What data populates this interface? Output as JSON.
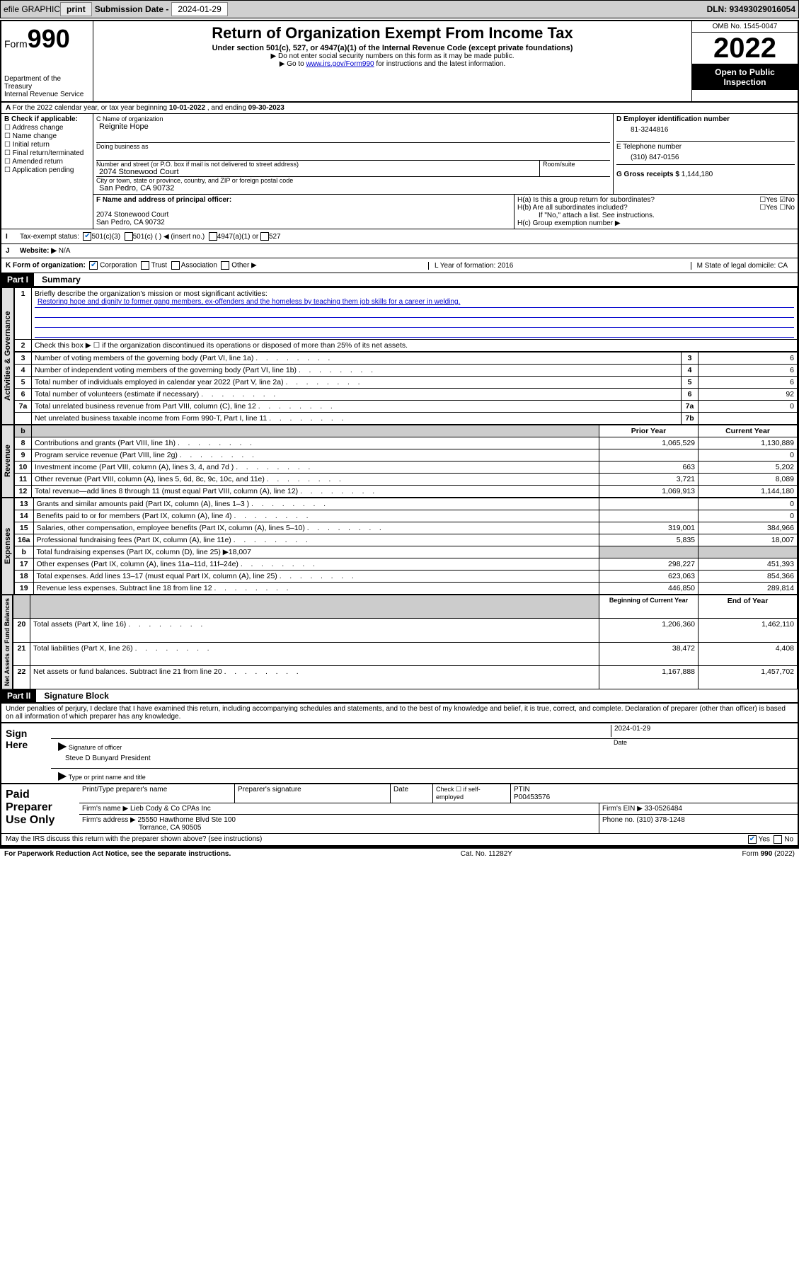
{
  "topbar": {
    "efile": "efile GRAPHIC",
    "print": "print",
    "sub_label": "Submission Date - ",
    "sub_date": "2024-01-29",
    "dln": "DLN: 93493029016054"
  },
  "header": {
    "form_small": "Form",
    "form_num": "990",
    "dept": "Department of the Treasury",
    "irs": "Internal Revenue Service",
    "title": "Return of Organization Exempt From Income Tax",
    "sub1": "Under section 501(c), 527, or 4947(a)(1) of the Internal Revenue Code (except private foundations)",
    "sub2": "▶ Do not enter social security numbers on this form as it may be made public.",
    "sub3_pre": "▶ Go to ",
    "sub3_link": "www.irs.gov/Form990",
    "sub3_post": " for instructions and the latest information.",
    "omb": "OMB No. 1545-0047",
    "year": "2022",
    "open": "Open to Public Inspection"
  },
  "rowA": {
    "text_pre": "For the 2022 calendar year, or tax year beginning ",
    "begin": "10-01-2022",
    "mid": " , and ending ",
    "end": "09-30-2023"
  },
  "B": {
    "lbl": "B Check if applicable:",
    "opts": [
      "Address change",
      "Name change",
      "Initial return",
      "Final return/terminated",
      "Amended return",
      "Application pending"
    ]
  },
  "C": {
    "name_lbl": "C Name of organization",
    "name": "Reignite Hope",
    "dba_lbl": "Doing business as",
    "addr_lbl": "Number and street (or P.O. box if mail is not delivered to street address)",
    "room_lbl": "Room/suite",
    "addr": "2074 Stonewood Court",
    "city_lbl": "City or town, state or province, country, and ZIP or foreign postal code",
    "city": "San Pedro, CA  90732"
  },
  "D": {
    "lbl": "D Employer identification number",
    "val": "81-3244816"
  },
  "E": {
    "lbl": "E Telephone number",
    "val": "(310) 847-0156"
  },
  "G": {
    "lbl": "G Gross receipts $",
    "val": "1,144,180"
  },
  "F": {
    "lbl": "F  Name and address of principal officer:",
    "addr1": "2074 Stonewood Court",
    "addr2": "San Pedro, CA  90732"
  },
  "H": {
    "a": "H(a)  Is this a group return for subordinates?",
    "b": "H(b)  Are all subordinates included?",
    "note": "If \"No,\" attach a list. See instructions.",
    "c": "H(c)  Group exemption number ▶"
  },
  "I": {
    "lbl": "Tax-exempt status:",
    "o1": "501(c)(3)",
    "o2": "501(c) (  ) ◀ (insert no.)",
    "o3": "4947(a)(1) or",
    "o4": "527"
  },
  "J": {
    "lbl": "Website: ▶",
    "val": "N/A"
  },
  "K": {
    "lbl": "K Form of organization:",
    "opts": [
      "Corporation",
      "Trust",
      "Association",
      "Other ▶"
    ],
    "L": "L Year of formation: 2016",
    "M": "M State of legal domicile: CA"
  },
  "part1": {
    "hdr": "Part I",
    "title": "Summary",
    "q1_lbl": "Briefly describe the organization's mission or most significant activities:",
    "q1_val": "Restoring hope and dignity to former gang members, ex-offenders and the homeless by teaching them job skills for a career in welding.",
    "q2": "Check this box ▶ ☐ if the organization discontinued its operations or disposed of more than 25% of its net assets.",
    "sideA": "Activities & Governance",
    "sideR": "Revenue",
    "sideE": "Expenses",
    "sideN": "Net Assets or Fund Balances",
    "rows_gov": [
      {
        "n": "3",
        "t": "Number of voting members of the governing body (Part VI, line 1a)",
        "b": "3",
        "v": "6"
      },
      {
        "n": "4",
        "t": "Number of independent voting members of the governing body (Part VI, line 1b)",
        "b": "4",
        "v": "6"
      },
      {
        "n": "5",
        "t": "Total number of individuals employed in calendar year 2022 (Part V, line 2a)",
        "b": "5",
        "v": "6"
      },
      {
        "n": "6",
        "t": "Total number of volunteers (estimate if necessary)",
        "b": "6",
        "v": "92"
      },
      {
        "n": "7a",
        "t": "Total unrelated business revenue from Part VIII, column (C), line 12",
        "b": "7a",
        "v": "0"
      },
      {
        "n": "",
        "t": "Net unrelated business taxable income from Form 990-T, Part I, line 11",
        "b": "7b",
        "v": ""
      }
    ],
    "py_hdr": "Prior Year",
    "cy_hdr": "Current Year",
    "rows_rev": [
      {
        "n": "8",
        "t": "Contributions and grants (Part VIII, line 1h)",
        "py": "1,065,529",
        "cy": "1,130,889"
      },
      {
        "n": "9",
        "t": "Program service revenue (Part VIII, line 2g)",
        "py": "",
        "cy": "0"
      },
      {
        "n": "10",
        "t": "Investment income (Part VIII, column (A), lines 3, 4, and 7d )",
        "py": "663",
        "cy": "5,202"
      },
      {
        "n": "11",
        "t": "Other revenue (Part VIII, column (A), lines 5, 6d, 8c, 9c, 10c, and 11e)",
        "py": "3,721",
        "cy": "8,089"
      },
      {
        "n": "12",
        "t": "Total revenue—add lines 8 through 11 (must equal Part VIII, column (A), line 12)",
        "py": "1,069,913",
        "cy": "1,144,180"
      }
    ],
    "rows_exp": [
      {
        "n": "13",
        "t": "Grants and similar amounts paid (Part IX, column (A), lines 1–3 )",
        "py": "",
        "cy": "0"
      },
      {
        "n": "14",
        "t": "Benefits paid to or for members (Part IX, column (A), line 4)",
        "py": "",
        "cy": "0"
      },
      {
        "n": "15",
        "t": "Salaries, other compensation, employee benefits (Part IX, column (A), lines 5–10)",
        "py": "319,001",
        "cy": "384,966"
      },
      {
        "n": "16a",
        "t": "Professional fundraising fees (Part IX, column (A), line 11e)",
        "py": "5,835",
        "cy": "18,007"
      },
      {
        "n": "b",
        "t": "Total fundraising expenses (Part IX, column (D), line 25) ▶18,007",
        "py": "—",
        "cy": "—"
      },
      {
        "n": "17",
        "t": "Other expenses (Part IX, column (A), lines 11a–11d, 11f–24e)",
        "py": "298,227",
        "cy": "451,393"
      },
      {
        "n": "18",
        "t": "Total expenses. Add lines 13–17 (must equal Part IX, column (A), line 25)",
        "py": "623,063",
        "cy": "854,366"
      },
      {
        "n": "19",
        "t": "Revenue less expenses. Subtract line 18 from line 12",
        "py": "446,850",
        "cy": "289,814"
      }
    ],
    "boy_hdr": "Beginning of Current Year",
    "eoy_hdr": "End of Year",
    "rows_na": [
      {
        "n": "20",
        "t": "Total assets (Part X, line 16)",
        "py": "1,206,360",
        "cy": "1,462,110"
      },
      {
        "n": "21",
        "t": "Total liabilities (Part X, line 26)",
        "py": "38,472",
        "cy": "4,408"
      },
      {
        "n": "22",
        "t": "Net assets or fund balances. Subtract line 21 from line 20",
        "py": "1,167,888",
        "cy": "1,457,702"
      }
    ]
  },
  "part2": {
    "hdr": "Part II",
    "title": "Signature Block",
    "decl": "Under penalties of perjury, I declare that I have examined this return, including accompanying schedules and statements, and to the best of my knowledge and belief, it is true, correct, and complete. Declaration of preparer (other than officer) is based on all information of which preparer has any knowledge.",
    "sign_here": "Sign Here",
    "sig_officer": "Signature of officer",
    "sig_date": "2024-01-29",
    "date_lbl": "Date",
    "officer_name": "Steve D Bunyard  President",
    "type_name": "Type or print name and title",
    "paid": "Paid Preparer Use Only",
    "prep_name_lbl": "Print/Type preparer's name",
    "prep_sig_lbl": "Preparer's signature",
    "check_self": "Check ☐ if self-employed",
    "ptin_lbl": "PTIN",
    "ptin": "P00453576",
    "firm_name_lbl": "Firm's name    ▶",
    "firm_name": "Lieb Cody & Co CPAs Inc",
    "firm_ein_lbl": "Firm's EIN ▶",
    "firm_ein": "33-0526484",
    "firm_addr_lbl": "Firm's address ▶",
    "firm_addr1": "25550 Hawthorne Blvd Ste 100",
    "firm_addr2": "Torrance, CA  90505",
    "phone_lbl": "Phone no.",
    "phone": "(310) 378-1248"
  },
  "footer": {
    "discuss": "May the IRS discuss this return with the preparer shown above? (see instructions)",
    "pra": "For Paperwork Reduction Act Notice, see the separate instructions.",
    "cat": "Cat. No. 11282Y",
    "form": "Form 990 (2022)"
  }
}
